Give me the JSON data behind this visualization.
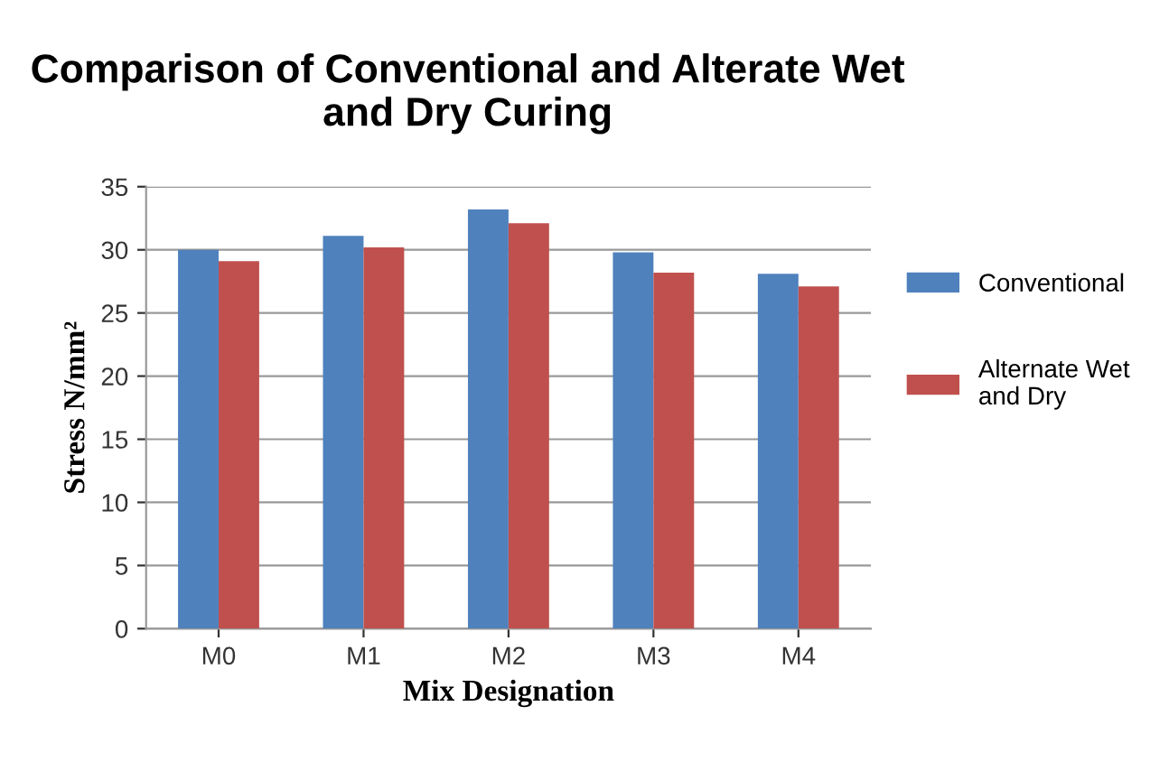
{
  "chart_data": {
    "type": "bar",
    "title": "Comparison of Conventional and Alterate Wet and Dry Curing",
    "xlabel": "Mix Designation",
    "ylabel": "Stress N/mm²",
    "categories": [
      "M0",
      "M1",
      "M2",
      "M3",
      "M4"
    ],
    "series": [
      {
        "name": "Conventional",
        "color": "#4f81bd",
        "values": [
          30.0,
          31.1,
          33.2,
          29.8,
          28.1
        ]
      },
      {
        "name": "Alternate Wet\nand Dry",
        "color": "#c0504d",
        "values": [
          29.1,
          30.2,
          32.1,
          28.2,
          27.1
        ]
      }
    ],
    "ylim": [
      0,
      35
    ],
    "yticks": [
      0,
      5,
      10,
      15,
      20,
      25,
      30,
      35
    ],
    "grid": "y",
    "legend": "right"
  }
}
